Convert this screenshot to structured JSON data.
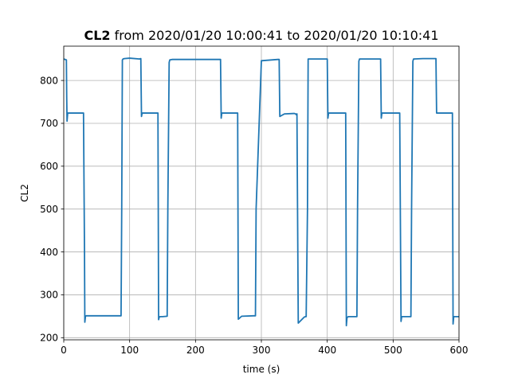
{
  "chart_data": {
    "type": "line",
    "title_bold": "CL2",
    "title_rest": "from 2020/01/20 10:00:41 to 2020/01/20 10:10:41",
    "xlabel": "time (s)",
    "ylabel": "CL2",
    "xlim": [
      0,
      600
    ],
    "ylim": [
      195,
      880
    ],
    "xticks": [
      0,
      100,
      200,
      300,
      400,
      500,
      600
    ],
    "yticks": [
      200,
      300,
      400,
      500,
      600,
      700,
      800
    ],
    "grid": true,
    "line_color": "#1f77b4",
    "series": [
      {
        "x": [
          0,
          4,
          4.5,
          5,
          5.5,
          6,
          8,
          20,
          30,
          31.5,
          32,
          33,
          34,
          36,
          60,
          87,
          88,
          89,
          90,
          92,
          100,
          115,
          117,
          118,
          119,
          120,
          125,
          140,
          143,
          144,
          145,
          146,
          150,
          157,
          158,
          160,
          161,
          165,
          200,
          237,
          238,
          239,
          240,
          245,
          262,
          263,
          264,
          265,
          270,
          288,
          289,
          291,
          292,
          300,
          325,
          326,
          327,
          328,
          335,
          350,
          352,
          353,
          354,
          356,
          365,
          367,
          368,
          370,
          371,
          380,
          400,
          401,
          402,
          403,
          405,
          427,
          428,
          429,
          430,
          432,
          444,
          445,
          446,
          448,
          449,
          460,
          480,
          481,
          482,
          483,
          485,
          508,
          509,
          510,
          512,
          513,
          525,
          527,
          528,
          530,
          531,
          545,
          565,
          566,
          567,
          570,
          588,
          590,
          591,
          592,
          593,
          600
        ],
        "y": [
          850,
          848,
          760,
          705,
          715,
          724,
          724,
          724,
          724,
          400,
          236,
          250,
          251,
          251,
          251,
          251,
          500,
          848,
          850,
          851,
          852,
          850,
          851,
          716,
          724,
          724,
          724,
          724,
          724,
          242,
          248,
          249,
          249,
          250,
          500,
          842,
          848,
          849,
          849,
          849,
          849,
          712,
          724,
          724,
          724,
          724,
          724,
          243,
          250,
          251,
          251,
          251,
          500,
          846,
          849,
          849,
          849,
          716,
          722,
          723,
          722,
          720,
          722,
          234,
          248,
          249,
          249,
          500,
          850,
          850,
          850,
          712,
          724,
          724,
          724,
          724,
          724,
          228,
          247,
          249,
          249,
          249,
          500,
          845,
          850,
          850,
          850,
          850,
          712,
          724,
          724,
          724,
          724,
          724,
          238,
          249,
          249,
          249,
          500,
          845,
          850,
          851,
          851,
          724,
          724,
          724,
          724,
          724,
          232,
          249,
          249,
          249
        ]
      }
    ]
  }
}
